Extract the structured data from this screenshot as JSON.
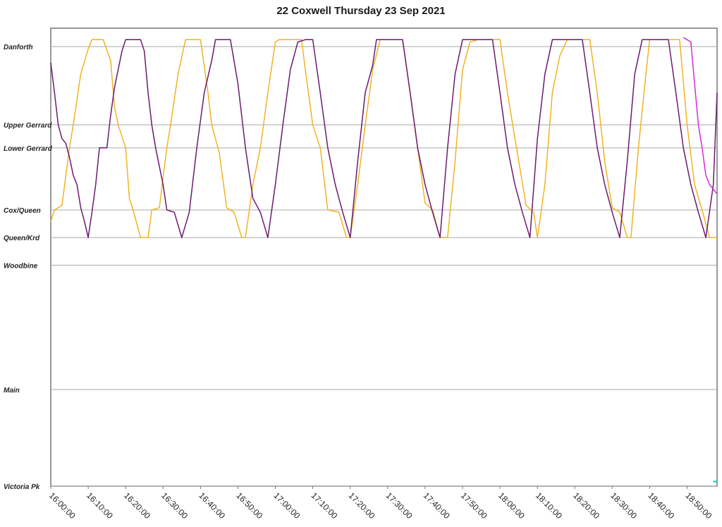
{
  "chart_data": {
    "type": "line",
    "title": "22 Coxwell Thursday 23 Sep 2021",
    "xlabel": "",
    "ylabel": "",
    "x_ticks": [
      "16:00:00",
      "16:10:00",
      "16:20:00",
      "16:30:00",
      "16:40:00",
      "16:50:00",
      "17:00:00",
      "17:10:00",
      "17:20:00",
      "17:30:00",
      "17:40:00",
      "17:50:00",
      "18:00:00",
      "18:10:00",
      "18:20:00",
      "18:30:00",
      "18:40:00",
      "18:50:00"
    ],
    "xlim": [
      "16:00:00",
      "18:58:00"
    ],
    "y_stops": [
      {
        "name": "Danforth",
        "pos": 0.0
      },
      {
        "name": "Upper Gerrard",
        "pos": 1.7
      },
      {
        "name": "Lower Gerrard",
        "pos": 2.2
      },
      {
        "name": "Cox/Queen",
        "pos": 3.55
      },
      {
        "name": "Queen/Krd",
        "pos": 4.15
      },
      {
        "name": "Woodbine",
        "pos": 4.75
      },
      {
        "name": "Main",
        "pos": 7.45
      },
      {
        "name": "Victoria Pk",
        "pos": 9.55
      }
    ],
    "ylim": [
      -0.4,
      9.55
    ],
    "grid": true,
    "legend": "none",
    "series": [
      {
        "color": "#f0b323",
        "points": [
          [
            "16:00:00",
            3.8
          ],
          [
            "16:01:00",
            3.55
          ],
          [
            "16:03:00",
            3.45
          ],
          [
            "16:05:00",
            2.2
          ],
          [
            "16:06:00",
            1.7
          ],
          [
            "16:08:00",
            0.6
          ],
          [
            "16:10:00",
            0.05
          ],
          [
            "16:11:00",
            -0.15
          ],
          [
            "16:14:00",
            -0.15
          ],
          [
            "16:16:00",
            0.3
          ],
          [
            "16:17:00",
            1.3
          ],
          [
            "16:18:00",
            1.7
          ],
          [
            "16:20:00",
            2.2
          ],
          [
            "16:21:00",
            3.3
          ],
          [
            "16:22:00",
            3.55
          ],
          [
            "16:24:00",
            4.15
          ],
          [
            "16:26:00",
            4.15
          ],
          [
            "16:27:00",
            3.55
          ],
          [
            "16:29:00",
            3.5
          ],
          [
            "16:31:00",
            2.2
          ],
          [
            "16:32:00",
            1.7
          ],
          [
            "16:34:00",
            0.6
          ],
          [
            "16:36:00",
            -0.15
          ],
          [
            "16:40:00",
            -0.15
          ],
          [
            "16:42:00",
            1.0
          ],
          [
            "16:43:00",
            1.7
          ],
          [
            "16:45:00",
            2.3
          ],
          [
            "16:47:00",
            3.5
          ],
          [
            "16:49:00",
            3.6
          ],
          [
            "16:51:00",
            4.15
          ],
          [
            "16:52:00",
            4.15
          ],
          [
            "16:54:00",
            3.0
          ],
          [
            "16:56:00",
            2.2
          ],
          [
            "16:58:00",
            1.0
          ],
          [
            "17:00:00",
            -0.1
          ],
          [
            "17:01:00",
            -0.15
          ],
          [
            "17:07:00",
            -0.15
          ],
          [
            "17:08:00",
            0.5
          ],
          [
            "17:10:00",
            1.7
          ],
          [
            "17:12:00",
            2.2
          ],
          [
            "17:14:00",
            3.55
          ],
          [
            "17:17:00",
            3.6
          ],
          [
            "17:19:00",
            4.15
          ],
          [
            "17:20:00",
            4.15
          ],
          [
            "17:22:00",
            3.0
          ],
          [
            "17:24:00",
            1.7
          ],
          [
            "17:26:00",
            0.5
          ],
          [
            "17:28:00",
            -0.15
          ],
          [
            "17:34:00",
            -0.15
          ],
          [
            "17:36:00",
            1.0
          ],
          [
            "17:38:00",
            2.2
          ],
          [
            "17:40:00",
            3.4
          ],
          [
            "17:42:00",
            3.55
          ],
          [
            "17:44:00",
            4.15
          ],
          [
            "17:46:00",
            4.15
          ],
          [
            "17:48:00",
            2.5
          ],
          [
            "17:50:00",
            0.5
          ],
          [
            "17:52:00",
            -0.1
          ],
          [
            "17:54:00",
            -0.15
          ],
          [
            "18:00:00",
            -0.15
          ],
          [
            "18:02:00",
            1.0
          ],
          [
            "18:04:00",
            2.0
          ],
          [
            "18:07:00",
            3.45
          ],
          [
            "18:09:00",
            3.6
          ],
          [
            "18:10:00",
            4.15
          ],
          [
            "18:12:00",
            3.0
          ],
          [
            "18:14:00",
            1.0
          ],
          [
            "18:16:00",
            0.2
          ],
          [
            "18:18:00",
            -0.15
          ],
          [
            "18:24:00",
            -0.15
          ],
          [
            "18:26:00",
            1.0
          ],
          [
            "18:28:00",
            2.5
          ],
          [
            "18:30:00",
            3.5
          ],
          [
            "18:32:00",
            3.6
          ],
          [
            "18:34:00",
            4.15
          ],
          [
            "18:35:00",
            4.15
          ],
          [
            "18:37:00",
            2.2
          ],
          [
            "18:39:00",
            0.6
          ],
          [
            "18:40:00",
            -0.15
          ],
          [
            "18:48:00",
            -0.15
          ],
          [
            "18:50:00",
            1.7
          ],
          [
            "18:52:00",
            3.0
          ],
          [
            "18:54:00",
            3.55
          ],
          [
            "18:56:00",
            4.15
          ],
          [
            "18:58:00",
            4.15
          ]
        ]
      },
      {
        "color": "#6a1b6f",
        "points": [
          [
            "16:00:00",
            0.35
          ],
          [
            "16:01:00",
            1.0
          ],
          [
            "16:02:00",
            1.7
          ],
          [
            "16:03:00",
            2.0
          ],
          [
            "16:04:00",
            2.1
          ],
          [
            "16:05:00",
            2.4
          ],
          [
            "16:06:00",
            2.8
          ],
          [
            "16:07:00",
            3.0
          ],
          [
            "16:08:00",
            3.5
          ],
          [
            "16:09:00",
            3.8
          ],
          [
            "16:10:00",
            4.15
          ],
          [
            "16:11:00",
            3.6
          ],
          [
            "16:12:00",
            3.0
          ],
          [
            "16:13:00",
            2.2
          ],
          [
            "16:15:00",
            2.2
          ],
          [
            "16:16:00",
            1.5
          ],
          [
            "16:17:00",
            0.9
          ],
          [
            "16:18:00",
            0.5
          ],
          [
            "16:19:00",
            0.1
          ],
          [
            "16:20:00",
            -0.15
          ],
          [
            "16:24:00",
            -0.15
          ],
          [
            "16:25:00",
            0.1
          ],
          [
            "16:26:00",
            1.0
          ],
          [
            "16:27:00",
            1.7
          ],
          [
            "16:28:00",
            2.2
          ],
          [
            "16:30:00",
            3.0
          ],
          [
            "16:31:00",
            3.55
          ],
          [
            "16:33:00",
            3.6
          ],
          [
            "16:35:00",
            4.15
          ],
          [
            "16:37:00",
            3.6
          ],
          [
            "16:39:00",
            2.2
          ],
          [
            "16:41:00",
            1.0
          ],
          [
            "16:43:00",
            0.3
          ],
          [
            "16:44:00",
            -0.15
          ],
          [
            "16:48:00",
            -0.15
          ],
          [
            "16:50:00",
            0.8
          ],
          [
            "16:52:00",
            2.2
          ],
          [
            "16:54:00",
            3.3
          ],
          [
            "16:56:00",
            3.6
          ],
          [
            "16:58:00",
            4.15
          ],
          [
            "17:00:00",
            3.0
          ],
          [
            "17:02:00",
            1.7
          ],
          [
            "17:04:00",
            0.5
          ],
          [
            "17:06:00",
            -0.1
          ],
          [
            "17:08:00",
            -0.15
          ],
          [
            "17:10:00",
            -0.15
          ],
          [
            "17:12:00",
            1.0
          ],
          [
            "17:14:00",
            2.2
          ],
          [
            "17:16:00",
            3.0
          ],
          [
            "17:18:00",
            3.6
          ],
          [
            "17:20:00",
            4.15
          ],
          [
            "17:22:00",
            2.5
          ],
          [
            "17:24:00",
            1.0
          ],
          [
            "17:26:00",
            0.4
          ],
          [
            "17:27:00",
            -0.15
          ],
          [
            "17:34:00",
            -0.15
          ],
          [
            "17:36:00",
            1.0
          ],
          [
            "17:38:00",
            2.2
          ],
          [
            "17:40:00",
            3.0
          ],
          [
            "17:42:00",
            3.6
          ],
          [
            "17:44:00",
            4.15
          ],
          [
            "17:46:00",
            2.2
          ],
          [
            "17:48:00",
            0.6
          ],
          [
            "17:50:00",
            -0.15
          ],
          [
            "17:58:00",
            -0.15
          ],
          [
            "18:00:00",
            1.0
          ],
          [
            "18:02:00",
            2.2
          ],
          [
            "18:04:00",
            3.0
          ],
          [
            "18:06:00",
            3.6
          ],
          [
            "18:08:00",
            4.15
          ],
          [
            "18:10:00",
            2.0
          ],
          [
            "18:12:00",
            0.6
          ],
          [
            "18:14:00",
            -0.15
          ],
          [
            "18:22:00",
            -0.15
          ],
          [
            "18:24:00",
            1.0
          ],
          [
            "18:26:00",
            2.2
          ],
          [
            "18:28:00",
            3.0
          ],
          [
            "18:30:00",
            3.6
          ],
          [
            "18:32:00",
            4.15
          ],
          [
            "18:34:00",
            2.5
          ],
          [
            "18:36:00",
            0.6
          ],
          [
            "18:38:00",
            -0.15
          ],
          [
            "18:45:00",
            -0.15
          ],
          [
            "18:47:00",
            1.0
          ],
          [
            "18:49:00",
            2.2
          ],
          [
            "18:51:00",
            3.0
          ],
          [
            "18:53:00",
            3.6
          ],
          [
            "18:55:00",
            4.15
          ],
          [
            "18:57:00",
            3.0
          ],
          [
            "18:58:00",
            1.0
          ]
        ]
      },
      {
        "color": "#d62ad9",
        "points": [
          [
            "18:49:00",
            -0.2
          ],
          [
            "18:50:00",
            -0.15
          ],
          [
            "18:51:00",
            -0.1
          ],
          [
            "18:52:00",
            0.8
          ],
          [
            "18:53:00",
            1.7
          ],
          [
            "18:54:00",
            2.2
          ],
          [
            "18:55:00",
            2.8
          ],
          [
            "18:56:00",
            3.0
          ],
          [
            "18:58:00",
            3.2
          ]
        ]
      },
      {
        "color": "#00c8c8",
        "points": [
          [
            "18:57:00",
            9.45
          ],
          [
            "18:58:00",
            9.45
          ]
        ]
      }
    ]
  }
}
